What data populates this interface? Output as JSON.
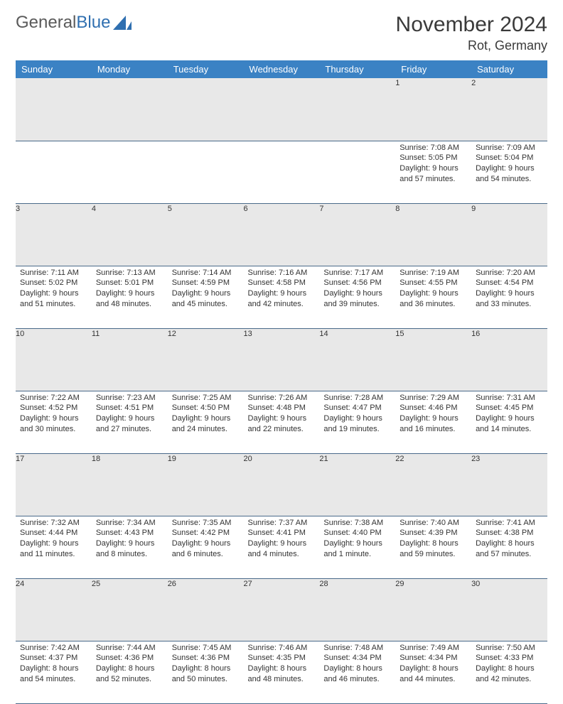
{
  "logo": {
    "text1": "General",
    "text2": "Blue"
  },
  "title": "November 2024",
  "location": "Rot, Germany",
  "colors": {
    "header_bg": "#3b82c4",
    "header_text": "#ffffff",
    "daynum_bg": "#e8e8e8",
    "border": "#4a6a8a",
    "logo_gray": "#5a5a5a",
    "logo_blue": "#2f6fb0"
  },
  "days": [
    "Sunday",
    "Monday",
    "Tuesday",
    "Wednesday",
    "Thursday",
    "Friday",
    "Saturday"
  ],
  "weeks": [
    [
      null,
      null,
      null,
      null,
      null,
      {
        "n": "1",
        "sr": "Sunrise: 7:08 AM",
        "ss": "Sunset: 5:05 PM",
        "dl": "Daylight: 9 hours and 57 minutes."
      },
      {
        "n": "2",
        "sr": "Sunrise: 7:09 AM",
        "ss": "Sunset: 5:04 PM",
        "dl": "Daylight: 9 hours and 54 minutes."
      }
    ],
    [
      {
        "n": "3",
        "sr": "Sunrise: 7:11 AM",
        "ss": "Sunset: 5:02 PM",
        "dl": "Daylight: 9 hours and 51 minutes."
      },
      {
        "n": "4",
        "sr": "Sunrise: 7:13 AM",
        "ss": "Sunset: 5:01 PM",
        "dl": "Daylight: 9 hours and 48 minutes."
      },
      {
        "n": "5",
        "sr": "Sunrise: 7:14 AM",
        "ss": "Sunset: 4:59 PM",
        "dl": "Daylight: 9 hours and 45 minutes."
      },
      {
        "n": "6",
        "sr": "Sunrise: 7:16 AM",
        "ss": "Sunset: 4:58 PM",
        "dl": "Daylight: 9 hours and 42 minutes."
      },
      {
        "n": "7",
        "sr": "Sunrise: 7:17 AM",
        "ss": "Sunset: 4:56 PM",
        "dl": "Daylight: 9 hours and 39 minutes."
      },
      {
        "n": "8",
        "sr": "Sunrise: 7:19 AM",
        "ss": "Sunset: 4:55 PM",
        "dl": "Daylight: 9 hours and 36 minutes."
      },
      {
        "n": "9",
        "sr": "Sunrise: 7:20 AM",
        "ss": "Sunset: 4:54 PM",
        "dl": "Daylight: 9 hours and 33 minutes."
      }
    ],
    [
      {
        "n": "10",
        "sr": "Sunrise: 7:22 AM",
        "ss": "Sunset: 4:52 PM",
        "dl": "Daylight: 9 hours and 30 minutes."
      },
      {
        "n": "11",
        "sr": "Sunrise: 7:23 AM",
        "ss": "Sunset: 4:51 PM",
        "dl": "Daylight: 9 hours and 27 minutes."
      },
      {
        "n": "12",
        "sr": "Sunrise: 7:25 AM",
        "ss": "Sunset: 4:50 PM",
        "dl": "Daylight: 9 hours and 24 minutes."
      },
      {
        "n": "13",
        "sr": "Sunrise: 7:26 AM",
        "ss": "Sunset: 4:48 PM",
        "dl": "Daylight: 9 hours and 22 minutes."
      },
      {
        "n": "14",
        "sr": "Sunrise: 7:28 AM",
        "ss": "Sunset: 4:47 PM",
        "dl": "Daylight: 9 hours and 19 minutes."
      },
      {
        "n": "15",
        "sr": "Sunrise: 7:29 AM",
        "ss": "Sunset: 4:46 PM",
        "dl": "Daylight: 9 hours and 16 minutes."
      },
      {
        "n": "16",
        "sr": "Sunrise: 7:31 AM",
        "ss": "Sunset: 4:45 PM",
        "dl": "Daylight: 9 hours and 14 minutes."
      }
    ],
    [
      {
        "n": "17",
        "sr": "Sunrise: 7:32 AM",
        "ss": "Sunset: 4:44 PM",
        "dl": "Daylight: 9 hours and 11 minutes."
      },
      {
        "n": "18",
        "sr": "Sunrise: 7:34 AM",
        "ss": "Sunset: 4:43 PM",
        "dl": "Daylight: 9 hours and 8 minutes."
      },
      {
        "n": "19",
        "sr": "Sunrise: 7:35 AM",
        "ss": "Sunset: 4:42 PM",
        "dl": "Daylight: 9 hours and 6 minutes."
      },
      {
        "n": "20",
        "sr": "Sunrise: 7:37 AM",
        "ss": "Sunset: 4:41 PM",
        "dl": "Daylight: 9 hours and 4 minutes."
      },
      {
        "n": "21",
        "sr": "Sunrise: 7:38 AM",
        "ss": "Sunset: 4:40 PM",
        "dl": "Daylight: 9 hours and 1 minute."
      },
      {
        "n": "22",
        "sr": "Sunrise: 7:40 AM",
        "ss": "Sunset: 4:39 PM",
        "dl": "Daylight: 8 hours and 59 minutes."
      },
      {
        "n": "23",
        "sr": "Sunrise: 7:41 AM",
        "ss": "Sunset: 4:38 PM",
        "dl": "Daylight: 8 hours and 57 minutes."
      }
    ],
    [
      {
        "n": "24",
        "sr": "Sunrise: 7:42 AM",
        "ss": "Sunset: 4:37 PM",
        "dl": "Daylight: 8 hours and 54 minutes."
      },
      {
        "n": "25",
        "sr": "Sunrise: 7:44 AM",
        "ss": "Sunset: 4:36 PM",
        "dl": "Daylight: 8 hours and 52 minutes."
      },
      {
        "n": "26",
        "sr": "Sunrise: 7:45 AM",
        "ss": "Sunset: 4:36 PM",
        "dl": "Daylight: 8 hours and 50 minutes."
      },
      {
        "n": "27",
        "sr": "Sunrise: 7:46 AM",
        "ss": "Sunset: 4:35 PM",
        "dl": "Daylight: 8 hours and 48 minutes."
      },
      {
        "n": "28",
        "sr": "Sunrise: 7:48 AM",
        "ss": "Sunset: 4:34 PM",
        "dl": "Daylight: 8 hours and 46 minutes."
      },
      {
        "n": "29",
        "sr": "Sunrise: 7:49 AM",
        "ss": "Sunset: 4:34 PM",
        "dl": "Daylight: 8 hours and 44 minutes."
      },
      {
        "n": "30",
        "sr": "Sunrise: 7:50 AM",
        "ss": "Sunset: 4:33 PM",
        "dl": "Daylight: 8 hours and 42 minutes."
      }
    ]
  ]
}
